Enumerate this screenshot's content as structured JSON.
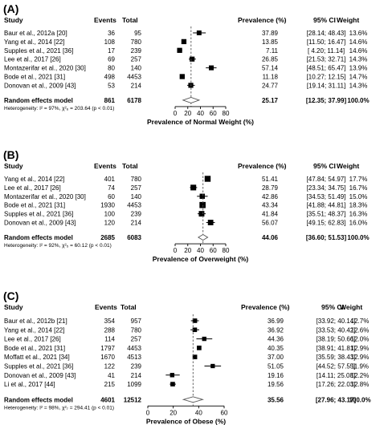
{
  "chart_data": [
    {
      "type": "forest",
      "panel_label": "(A)",
      "headers": {
        "study": "Study",
        "events": "Events",
        "total": "Total",
        "prevalence": "Prevalence (%)",
        "ci": "95% CI",
        "weight": "Weight"
      },
      "studies": [
        {
          "study": "Baur et al., 2012a [20]",
          "events": "36",
          "total": "95",
          "prev": 37.89,
          "prev_text": "37.89",
          "ci_text": "[28.14; 48.43]",
          "lo": 28.14,
          "hi": 48.43,
          "weight": "13.6%",
          "w": 13.6
        },
        {
          "study": "Yang et al., 2014 [22]",
          "events": "108",
          "total": "780",
          "prev": 13.85,
          "prev_text": "13.85",
          "ci_text": "[11.50; 16.47]",
          "lo": 11.5,
          "hi": 16.47,
          "weight": "14.6%",
          "w": 14.6
        },
        {
          "study": "Supples et al., 2021 [36]",
          "events": "17",
          "total": "239",
          "prev": 7.11,
          "prev_text": "7.11",
          "ci_text": "[ 4.20; 11.14]",
          "lo": 4.2,
          "hi": 11.14,
          "weight": "14.6%",
          "w": 14.6
        },
        {
          "study": "Lee et al., 2017 [26]",
          "events": "69",
          "total": "257",
          "prev": 26.85,
          "prev_text": "26.85",
          "ci_text": "[21.53; 32.71]",
          "lo": 21.53,
          "hi": 32.71,
          "weight": "14.3%",
          "w": 14.3
        },
        {
          "study": "Montazerifar et al., 2020 [30]",
          "events": "80",
          "total": "140",
          "prev": 57.14,
          "prev_text": "57.14",
          "ci_text": "[48.51; 65.47]",
          "lo": 48.51,
          "hi": 65.47,
          "weight": "13.9%",
          "w": 13.9
        },
        {
          "study": "Bode et al., 2021 [31]",
          "events": "498",
          "total": "4453",
          "prev": 11.18,
          "prev_text": "11.18",
          "ci_text": "[10.27; 12.15]",
          "lo": 10.27,
          "hi": 12.15,
          "weight": "14.7%",
          "w": 14.7
        },
        {
          "study": "Donovan et al., 2009 [43]",
          "events": "53",
          "total": "214",
          "prev": 24.77,
          "prev_text": "24.77",
          "ci_text": "[19.14; 31.11]",
          "lo": 19.14,
          "hi": 31.11,
          "weight": "14.3%",
          "w": 14.3
        }
      ],
      "pooled": {
        "label": "Random effects model",
        "events": "861",
        "total": "6178",
        "prev": 25.17,
        "prev_text": "25.17",
        "ci_text": "[12.35; 37.99]",
        "lo": 12.35,
        "hi": 37.99,
        "weight": "100.0%"
      },
      "heterogeneity": "Heterogeneity: I² = 97%, χ²₆ = 203.64 (p < 0.01)",
      "xticks": [
        0,
        20,
        40,
        60,
        80
      ],
      "xlim": [
        0,
        80
      ],
      "xlabel": "Prevalence of Normal Weight (%)"
    },
    {
      "type": "forest",
      "panel_label": "(B)",
      "headers": {
        "study": "Study",
        "events": "Events",
        "total": "Total",
        "prevalence": "Prevalence (%)",
        "ci": "95% CI",
        "weight": "Weight"
      },
      "studies": [
        {
          "study": "Yang et al., 2014 [22]",
          "events": "401",
          "total": "780",
          "prev": 51.41,
          "prev_text": "51.41",
          "ci_text": "[47.84; 54.97]",
          "lo": 47.84,
          "hi": 54.97,
          "weight": "17.7%",
          "w": 17.7
        },
        {
          "study": "Lee et al., 2017 [26]",
          "events": "74",
          "total": "257",
          "prev": 28.79,
          "prev_text": "28.79",
          "ci_text": "[23.34; 34.75]",
          "lo": 23.34,
          "hi": 34.75,
          "weight": "16.7%",
          "w": 16.7
        },
        {
          "study": "Montazerifar et al., 2020 [30]",
          "events": "60",
          "total": "140",
          "prev": 42.86,
          "prev_text": "42.86",
          "ci_text": "[34.53; 51.49]",
          "lo": 34.53,
          "hi": 51.49,
          "weight": "15.0%",
          "w": 15.0
        },
        {
          "study": "Bode et al., 2021 [31]",
          "events": "1930",
          "total": "4453",
          "prev": 43.34,
          "prev_text": "43.34",
          "ci_text": "[41.88; 44.81]",
          "lo": 41.88,
          "hi": 44.81,
          "weight": "18.3%",
          "w": 18.3
        },
        {
          "study": "Supples et al., 2021 [36]",
          "events": "100",
          "total": "239",
          "prev": 41.84,
          "prev_text": "41.84",
          "ci_text": "[35.51; 48.37]",
          "lo": 35.51,
          "hi": 48.37,
          "weight": "16.3%",
          "w": 16.3
        },
        {
          "study": "Donovan et al., 2009 [43]",
          "events": "120",
          "total": "214",
          "prev": 56.07,
          "prev_text": "56.07",
          "ci_text": "[49.15; 62.83]",
          "lo": 49.15,
          "hi": 62.83,
          "weight": "16.0%",
          "w": 16.0
        }
      ],
      "pooled": {
        "label": "Random effects model",
        "events": "2685",
        "total": "6083",
        "prev": 44.06,
        "prev_text": "44.06",
        "ci_text": "[36.60; 51.53]",
        "lo": 36.6,
        "hi": 51.53,
        "weight": "100.0%"
      },
      "heterogeneity": "Heterogeneity: I² = 92%, χ²₅ = 60.12 (p < 0.01)",
      "xticks": [
        0,
        20,
        40,
        60,
        80
      ],
      "xlim": [
        0,
        80
      ],
      "xlabel": "Prevalence of Overweight (%)"
    },
    {
      "type": "forest",
      "panel_label": "(C)",
      "headers": {
        "study": "Study",
        "events": "Events",
        "total": "Total",
        "prevalence": "Prevalence (%)",
        "ci": "95% CI",
        "weight": "Weight"
      },
      "studies": [
        {
          "study": "Baur et al., 2012b [21]",
          "events": "354",
          "total": "957",
          "prev": 36.99,
          "prev_text": "36.99",
          "ci_text": "[33.92; 40.14]",
          "lo": 33.92,
          "hi": 40.14,
          "weight": "12.7%",
          "w": 12.7
        },
        {
          "study": "Yang et al., 2014 [22]",
          "events": "288",
          "total": "780",
          "prev": 36.92,
          "prev_text": "36.92",
          "ci_text": "[33.53; 40.42]",
          "lo": 33.53,
          "hi": 40.42,
          "weight": "12.6%",
          "w": 12.6
        },
        {
          "study": "Lee et al., 2017 [26]",
          "events": "114",
          "total": "257",
          "prev": 44.36,
          "prev_text": "44.36",
          "ci_text": "[38.19; 50.66]",
          "lo": 38.19,
          "hi": 50.66,
          "weight": "12.0%",
          "w": 12.0
        },
        {
          "study": "Bode et al., 2021 [31]",
          "events": "1797",
          "total": "4453",
          "prev": 40.35,
          "prev_text": "40.35",
          "ci_text": "[38.91; 41.81]",
          "lo": 38.91,
          "hi": 41.81,
          "weight": "12.9%",
          "w": 12.9
        },
        {
          "study": "Moffatt et al., 2021 [34]",
          "events": "1670",
          "total": "4513",
          "prev": 37.0,
          "prev_text": "37.00",
          "ci_text": "[35.59; 38.43]",
          "lo": 35.59,
          "hi": 38.43,
          "weight": "12.9%",
          "w": 12.9
        },
        {
          "study": "Supples et al., 2021 [36]",
          "events": "122",
          "total": "239",
          "prev": 51.05,
          "prev_text": "51.05",
          "ci_text": "[44.52; 57.55]",
          "lo": 44.52,
          "hi": 57.55,
          "weight": "11.9%",
          "w": 11.9
        },
        {
          "study": "Donovan et al., 2009 [43]",
          "events": "41",
          "total": "214",
          "prev": 19.16,
          "prev_text": "19.16",
          "ci_text": "[14.11; 25.08]",
          "lo": 14.11,
          "hi": 25.08,
          "weight": "12.2%",
          "w": 12.2
        },
        {
          "study": "Li et al., 2017 [44]",
          "events": "215",
          "total": "1099",
          "prev": 19.56,
          "prev_text": "19.56",
          "ci_text": "[17.26; 22.03]",
          "lo": 17.26,
          "hi": 22.03,
          "weight": "12.8%",
          "w": 12.8
        }
      ],
      "pooled": {
        "label": "Random effects model",
        "events": "4601",
        "total": "12512",
        "prev": 35.56,
        "prev_text": "35.56",
        "ci_text": "[27.96; 43.17]",
        "lo": 27.96,
        "hi": 43.17,
        "weight": "100.0%"
      },
      "heterogeneity": "Heterogeneity: I² = 98%, χ²₇ = 294.41 (p < 0.01)",
      "xticks": [
        0,
        20,
        40,
        60
      ],
      "xlim": [
        0,
        60
      ],
      "xlabel": "Prevalence of Obese (%)"
    }
  ]
}
